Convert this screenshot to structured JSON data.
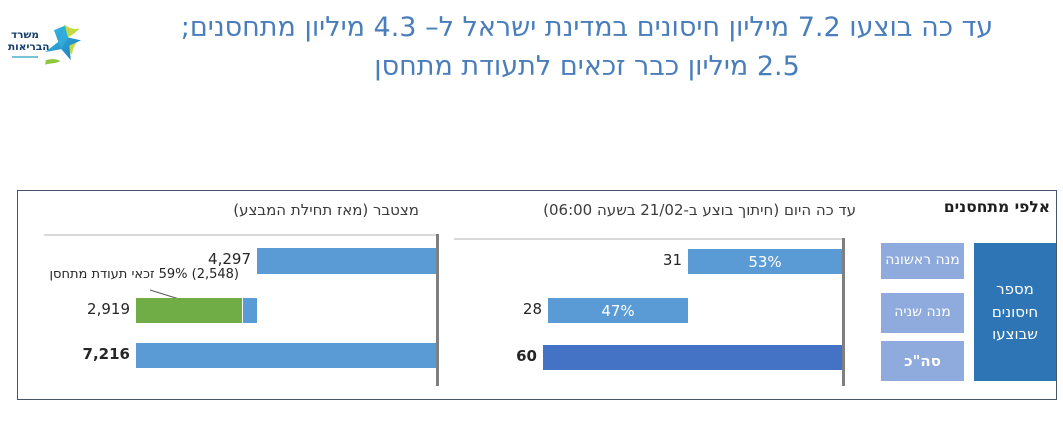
{
  "logo": {
    "ministry_line1": "משרד",
    "ministry_line2": "הבריאות"
  },
  "header": {
    "line1": "עד כה בוצעו 7.2 מיליון חיסונים במדינת ישראל ל– 4.3 מיליון מתחסנים;",
    "line2": "2.5 מיליון כבר זכאים לתעודת מתחסן",
    "color": "#4a7ebb"
  },
  "legend": {
    "units_label": "אלפי מתחסנים",
    "dose1_label": "מנה ראשונה",
    "dose2_label": "מנה שניה",
    "total_label": "סה\"כ",
    "metric_label": "מספר חיסונים שבוצעו"
  },
  "chart_data": [
    {
      "type": "bar",
      "orientation": "horizontal-rtl-waterfall",
      "title": "עד כה היום (חיתוך בוצע ב-21/02 בשעה 06:00)",
      "units": "אלפי מתחסנים",
      "categories": [
        "מנה ראשונה",
        "מנה שניה",
        "סה\"כ"
      ],
      "values": [
        31,
        28,
        60
      ],
      "display_values": [
        "31",
        "28",
        "60"
      ],
      "inner_labels": [
        "53%",
        "47%",
        null
      ],
      "colors": [
        "#5b9bd5",
        "#5b9bd5",
        "#4472c4"
      ],
      "axis_side": "right",
      "grid": false
    },
    {
      "type": "bar",
      "orientation": "horizontal-rtl-waterfall",
      "title": "מצטבר (מאז תחילת המבצע)",
      "units": "אלפי מתחסנים",
      "categories": [
        "מנה ראשונה",
        "מנה שניה",
        "סה\"כ"
      ],
      "values": [
        4297,
        2919,
        7216
      ],
      "display_values": [
        "4,297",
        "2,919",
        "7,216"
      ],
      "inner_labels": [
        null,
        null,
        null
      ],
      "colors": [
        "#5b9bd5",
        "#5b9bd5",
        "#5b9bd5"
      ],
      "segment": {
        "bar_index": 1,
        "value": 2548,
        "of": 2919,
        "color": "#70ad47",
        "rest_color": "#5b9bd5",
        "annotation": "(2,548) 59% זכאי תעודת מתחסן"
      },
      "axis_side": "right",
      "grid": false
    }
  ],
  "style_colors": {
    "bar_light_blue": "#5b9bd5",
    "bar_dark_blue": "#4472c4",
    "bar_green": "#70ad47",
    "legend_light": "#8faadc",
    "legend_dark": "#2e75b6",
    "panel_border": "#44546a",
    "axis_gray": "#7f7f7f"
  }
}
